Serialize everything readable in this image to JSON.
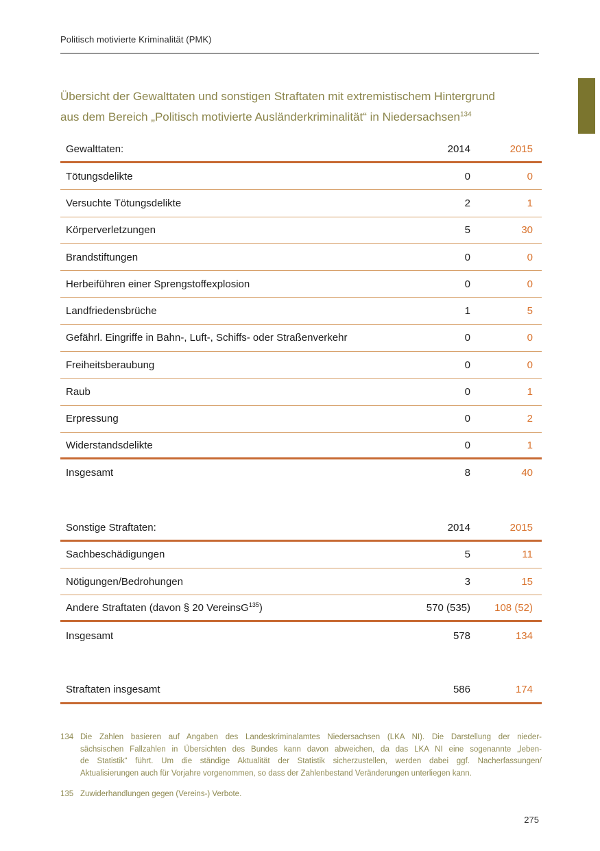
{
  "running_header": "Politisch motivierte Kriminalität (PMK)",
  "title": {
    "line1": "Übersicht der Gewalttaten und sonstigen Straftaten mit extremistischem Hintergrund",
    "line2": "aus dem Bereich „Politisch motivierte Ausländerkriminalität“ in Niedersachsen",
    "footnote_ref": "134"
  },
  "colors": {
    "accent_orange": "#d9732e",
    "rule_thick": "#c76a33",
    "rule_thin": "#d7a06a",
    "olive_title": "#8b854b",
    "olive_tab": "#7b752e",
    "footnote_olive": "#8f8a52"
  },
  "tables": [
    {
      "header": {
        "label": "Gewalttaten:",
        "col_2014": "2014",
        "col_2015": "2015"
      },
      "rows": [
        {
          "label": "Tötungsdelikte",
          "v2014": "0",
          "v2015": "0",
          "border": "thin"
        },
        {
          "label": "Versuchte Tötungsdelikte",
          "v2014": "2",
          "v2015": "1",
          "border": "thin"
        },
        {
          "label": "Körperverletzungen",
          "v2014": "5",
          "v2015": "30",
          "border": "thin"
        },
        {
          "label": "Brandstiftungen",
          "v2014": "0",
          "v2015": "0",
          "border": "thin"
        },
        {
          "label": "Herbeiführen einer Sprengstoffexplosion",
          "v2014": "0",
          "v2015": "0",
          "border": "thin"
        },
        {
          "label": "Landfriedensbrüche",
          "v2014": "1",
          "v2015": "5",
          "border": "thin"
        },
        {
          "label": "Gefährl. Eingriffe in Bahn-, Luft-, Schiffs- oder Straßenverkehr",
          "v2014": "0",
          "v2015": "0",
          "border": "thin"
        },
        {
          "label": "Freiheitsberaubung",
          "v2014": "0",
          "v2015": "0",
          "border": "thin"
        },
        {
          "label": "Raub",
          "v2014": "0",
          "v2015": "1",
          "border": "thin"
        },
        {
          "label": "Erpressung",
          "v2014": "0",
          "v2015": "2",
          "border": "thin"
        },
        {
          "label": "Widerstandsdelikte",
          "v2014": "0",
          "v2015": "1",
          "border": "thick"
        },
        {
          "label": "Insgesamt",
          "v2014": "8",
          "v2015": "40",
          "border": "none"
        }
      ]
    },
    {
      "header": {
        "label": "Sonstige Straftaten:",
        "col_2014": "2014",
        "col_2015": "2015"
      },
      "rows": [
        {
          "label": "Sachbeschädigungen",
          "v2014": "5",
          "v2015": "11",
          "border": "thin"
        },
        {
          "label": "Nötigungen/Bedrohungen",
          "v2014": "3",
          "v2015": "15",
          "border": "thin"
        },
        {
          "label": "Andere Straftaten (davon § 20 VereinsG",
          "label_sup": "135",
          "label_end": ")",
          "v2014": "570 (535)",
          "v2015": "108 (52)",
          "border": "thick"
        },
        {
          "label": "Insgesamt",
          "v2014": "578",
          "v2015": "134",
          "border": "none"
        }
      ]
    },
    {
      "header": null,
      "rows": [
        {
          "label": "Straftaten insgesamt",
          "v2014": "586",
          "v2015": "174",
          "border": "thick"
        }
      ]
    }
  ],
  "footnotes": [
    {
      "number": "134",
      "lines": [
        "Die Zahlen basieren auf Angaben des Landeskriminalamtes Niedersachsen (LKA NI). Die Darstellung der nieder-",
        "sächsischen Fallzahlen in Übersichten des Bundes kann davon abweichen, da das LKA NI eine sogenannte „leben-",
        "de Statistik“ führt. Um die ständige Aktualität der Statistik sicherzustellen, werden dabei ggf. Nacherfassungen/",
        "Aktualisierungen auch für Vorjahre vorgenommen, so dass der Zahlenbestand Veränderungen unterliegen kann."
      ]
    },
    {
      "number": "135",
      "lines": [
        "Zuwiderhandlungen gegen (Vereins-) Verbote."
      ]
    }
  ],
  "page_number": "275"
}
